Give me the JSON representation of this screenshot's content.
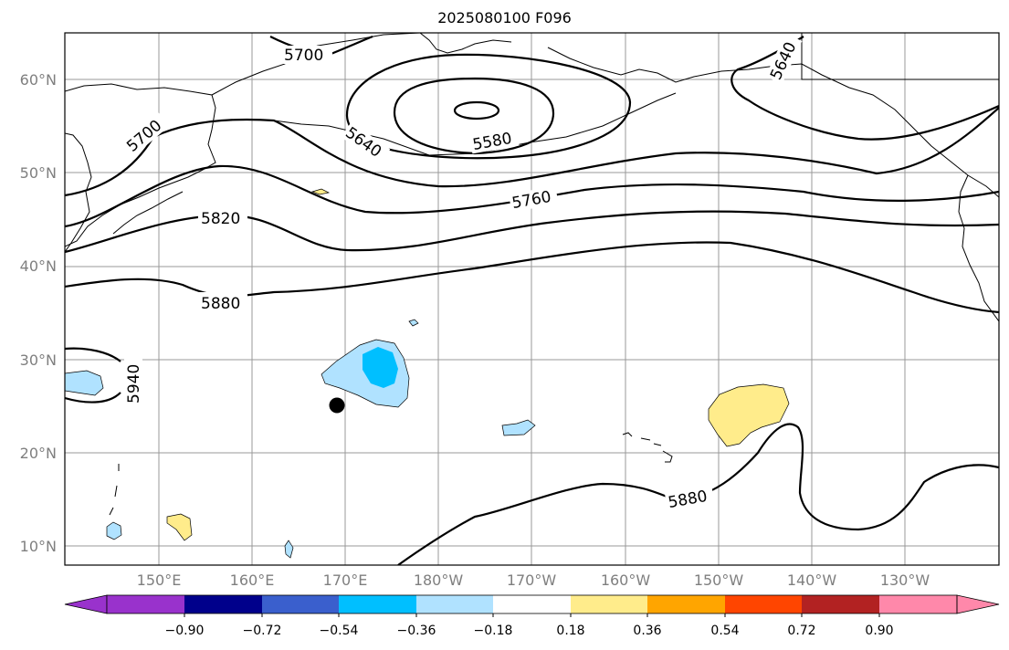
{
  "title": "2025080100 F096",
  "lat_labels": [
    "60°N",
    "50°N",
    "40°N",
    "30°N",
    "20°N",
    "10°N"
  ],
  "lon_labels": [
    "150°E",
    "160°E",
    "170°E",
    "180°W",
    "170°W",
    "160°W",
    "150°W",
    "140°W",
    "130°W"
  ],
  "contour_labels": [
    "5700",
    "5700",
    "5640",
    "5580",
    "5640",
    "5760",
    "5820",
    "5880",
    "5880",
    "5940"
  ],
  "colorbar": {
    "ticks": [
      "−0.90",
      "−0.72",
      "−0.54",
      "−0.36",
      "−0.18",
      "0.18",
      "0.36",
      "0.54",
      "0.72",
      "0.90"
    ],
    "colors": [
      "#9932cc",
      "#00008b",
      "#3a5fcd",
      "#00bfff",
      "#b0e2ff",
      "#ffffff",
      "#ffec8b",
      "#ffa500",
      "#ff4500",
      "#b22222",
      "#ff88aa"
    ]
  },
  "markers": [
    {
      "name": "black-dot",
      "color": "#000000"
    }
  ]
}
